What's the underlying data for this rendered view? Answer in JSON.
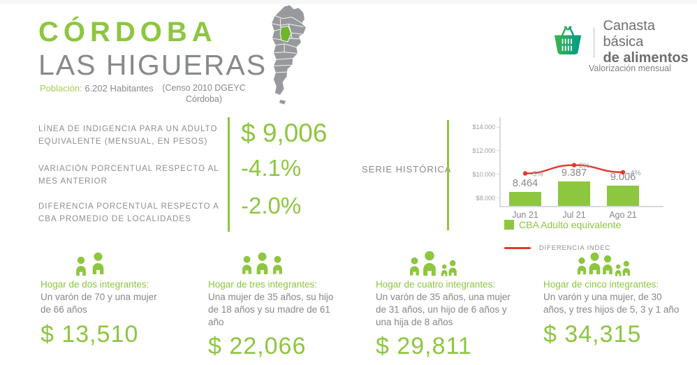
{
  "header": {
    "province": "CÓRDOBA",
    "locality": "LAS HIGUERAS",
    "population_label": "Población:",
    "population_value": "6.202 Habitantes",
    "census_note": "(Censo 2010 DGEYC Córdoba)"
  },
  "logo": {
    "icon": "shopping-basket-icon",
    "brand_line1": "Canasta básica",
    "brand_line2": "de alimentos",
    "subtitle": "Valorización mensual"
  },
  "metrics": [
    {
      "label": "LÍNEA DE INDIGENCIA PARA UN ADULTO EQUIVALENTE (MENSUAL, EN PESOS)",
      "value": "$ 9,006"
    },
    {
      "label": "VARIACIÓN PORCENTUAL RESPECTO AL MES ANTERIOR",
      "value": "-4.1%"
    },
    {
      "label": "DIFERENCIA PORCENTUAL RESPECTO A CBA PROMEDIO DE LOCALIDADES",
      "value": "-2.0%"
    }
  ],
  "serie_historica_label": "SERIE HISTÓRICA",
  "chart_data": {
    "type": "bar",
    "categories": [
      "Jun 21",
      "Jul 21",
      "Ago 21"
    ],
    "series": [
      {
        "name": "CBA Adulto equivalente",
        "type": "bar",
        "values": [
          8464,
          9387,
          9006
        ],
        "value_labels": [
          "8.464",
          "9.387",
          "9.006"
        ],
        "color": "#8dc63f"
      },
      {
        "name": "DIFERENCIA INDEC",
        "type": "line",
        "values": [
          -5,
          2,
          -4
        ],
        "value_labels": [
          "-5%",
          "2%",
          "-4%"
        ],
        "color": "#e2382d"
      }
    ],
    "y_ticks": [
      "$8.000",
      "$10.000",
      "$12.000",
      "$14.000"
    ],
    "y_tick_values": [
      8000,
      10000,
      12000,
      14000
    ],
    "ylim": [
      7300,
      14800
    ],
    "grid": false,
    "legend_position": "bottom-left"
  },
  "households": [
    {
      "icon": "family-of-two-icon",
      "title": "Hogar de dos integrantes:",
      "description": "Un varón de 70 y una mujer de 66 años",
      "value": "$ 13,510"
    },
    {
      "icon": "family-of-three-icon",
      "title": "Hogar de tres integrantes:",
      "description": "Una mujer de 35 años, su hijo de 18 años y su madre de 61 año",
      "value": "$ 22,066"
    },
    {
      "icon": "family-of-four-icon",
      "title": "Hogar de cuatro integrantes:",
      "description": "Un varón de 35 años, una mujer de 31 años, un hijo de 6 años y una hija de 8 años",
      "value": "$ 29,811"
    },
    {
      "icon": "family-of-five-icon",
      "title": "Hogar de cinco integrantes:",
      "description": "Un varón y una mujer, de 30 años, y tres hijos de 5, 3 y 1 año",
      "value": "$ 34,315"
    }
  ],
  "colors": {
    "accent_green": "#8dc63f",
    "map_green": "#6fb62c",
    "text_gray": "#85878a",
    "line_red": "#e2382d",
    "map_gray": "#97999c",
    "basket_gradient_from": "#3bb54a",
    "basket_gradient_to": "#009b8d"
  }
}
